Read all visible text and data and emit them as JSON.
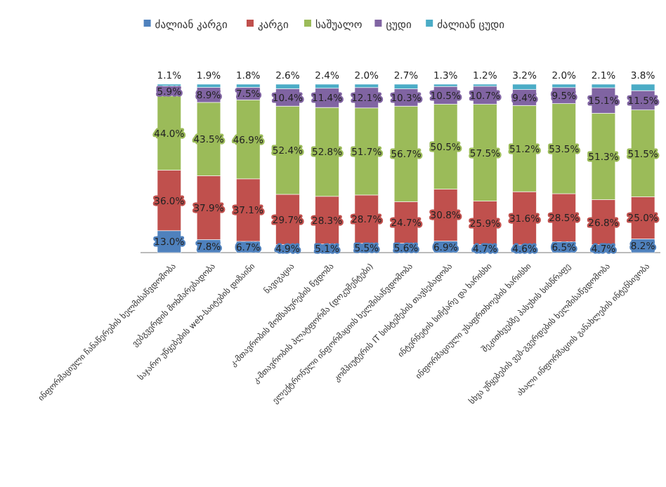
{
  "chart_data": {
    "type": "bar",
    "stacked": true,
    "legend": "top",
    "categories": [
      "ინფორმაციული ჩანაწერების ხელმისაწვდომობა",
      "ვებგვერდის მოხმარებადობა",
      "საჯარო უწყებების web-საიტების დიზაინი",
      "ნავიგაცია",
      "კ-მთავრობის მომსახურების წვდომა",
      "კ-მთავრობის პლატფორმა (დოკუმენტები)",
      "ელექტრონული ინფორმაციის ხელმისაწვდომობა",
      "კომპიუტერის IT სისტემების თავსებადობა",
      "ინტერნეტის სიჩქარე და ხარისხი",
      "ინფორმაციული უსაფრთხოების ხარისხი",
      "შეკითხვებზე პასუხის სისწრაფე",
      "სხვა უწყებების ვებ-გვერდების ხელმისაწვდომობა",
      "ახალი ინფორმაციის განახლების ინტენსივობა"
    ],
    "series": [
      {
        "name": "ძალიან კარგი",
        "color": "#4f81bd",
        "values": [
          13.0,
          7.8,
          6.7,
          4.9,
          5.1,
          5.5,
          5.6,
          6.9,
          4.7,
          4.6,
          6.5,
          4.7,
          8.2
        ],
        "value_labels": [
          "13.0%",
          "7.8%",
          "6.7%",
          "4.9%",
          "5.1%",
          "5.5%",
          "5.6%",
          "6.9%",
          "4.7%",
          "4.6%",
          "6.5%",
          "4.7%",
          "8.2%"
        ]
      },
      {
        "name": "კარგი",
        "color": "#c0504d",
        "values": [
          36.0,
          37.9,
          37.1,
          29.7,
          28.3,
          28.7,
          24.7,
          30.8,
          25.9,
          31.6,
          28.5,
          26.8,
          25.0
        ],
        "value_labels": [
          "36.0%",
          "37.9%",
          "37.1%",
          "29.7%",
          "28.3%",
          "28.7%",
          "24.7%",
          "30.8%",
          "25.9%",
          "31.6%",
          "28.5%",
          "26.8%",
          "25.0%"
        ]
      },
      {
        "name": "საშუალო",
        "color": "#9bbb59",
        "values": [
          44.0,
          43.5,
          46.9,
          52.4,
          52.8,
          51.7,
          56.7,
          50.5,
          57.5,
          51.2,
          53.5,
          51.3,
          51.5
        ],
        "value_labels": [
          "44.0%",
          "43.5%",
          "46.9%",
          "52.4%",
          "52.8%",
          "51.7%",
          "56.7%",
          "50.5%",
          "57.5%",
          "51.2%",
          "53.5%",
          "51.3%",
          "51.5%"
        ]
      },
      {
        "name": "ცუდი",
        "color": "#8064a2",
        "values": [
          5.9,
          8.9,
          7.5,
          10.4,
          11.4,
          12.1,
          10.3,
          10.5,
          10.7,
          9.4,
          9.5,
          15.1,
          11.5
        ],
        "value_labels": [
          "5.9%",
          "8.9%",
          "7.5%",
          "10.4%",
          "11.4%",
          "12.1%",
          "10.3%",
          "10.5%",
          "10.7%",
          "9.4%",
          "9.5%",
          "15.1%",
          "11.5%"
        ]
      },
      {
        "name": "ძალიან ცუდი",
        "color": "#4bacc6",
        "values": [
          1.1,
          1.9,
          1.8,
          2.6,
          2.4,
          2.0,
          2.7,
          1.3,
          1.2,
          3.2,
          2.0,
          2.1,
          3.8
        ],
        "value_labels": [
          "1.1%",
          "1.9%",
          "1.8%",
          "2.6%",
          "2.4%",
          "2.0%",
          "2.7%",
          "1.3%",
          "1.2%",
          "3.2%",
          "2.0%",
          "2.1%",
          "3.8%"
        ]
      }
    ]
  }
}
